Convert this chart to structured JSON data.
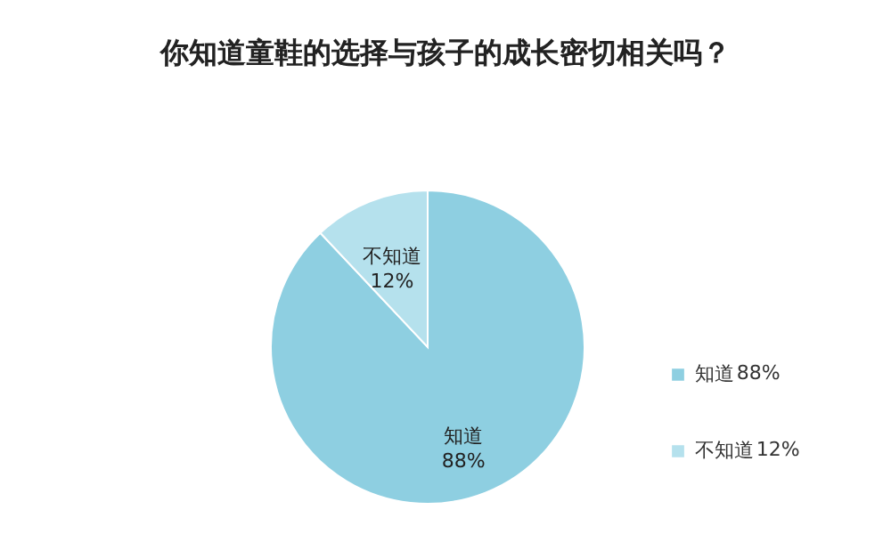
{
  "chart_data": {
    "type": "pie",
    "title": "你知道童鞋的选择与孩子的成长密切相关吗？",
    "categories": [
      "知道",
      "不知道"
    ],
    "values": [
      88,
      12
    ],
    "value_labels": [
      "88%",
      "12%"
    ],
    "colors": [
      "#8ecfe1",
      "#b5e1ed"
    ],
    "legend": "right"
  }
}
